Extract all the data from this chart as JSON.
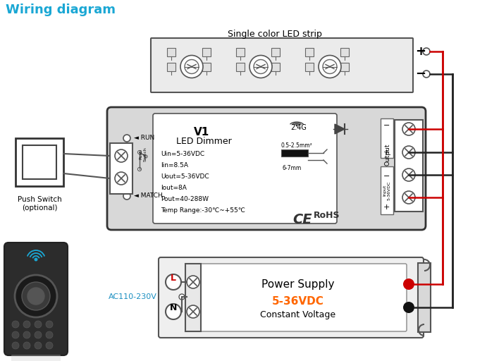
{
  "title": "Wiring diagram",
  "title_color": "#1aa7d4",
  "background_color": "#FFFFFF",
  "led_strip_label": "Single color LED strip",
  "power_supply_label1": "Power Supply",
  "power_supply_label2": "5-36VDC",
  "power_supply_label3": "Constant Voltage",
  "dimmer_title": "V1",
  "dimmer_subtitle": "LED Dimmer",
  "dimmer_specs": [
    "Uin=5-36VDC",
    "Iin=8.5A",
    "Uout=5-36VDC",
    "Iout=8A",
    "Pout=40-288W",
    "Temp Range:-30℃~+55℃"
  ],
  "dimmer_label1": "2.4G",
  "dimmer_label2": "0.5-2.5mm²",
  "dimmer_label3": "6-7mm",
  "push_switch_label": "Push Switch\n(optional)",
  "ac_label": "AC110-230V",
  "run_label": "RUN",
  "match_label": "MATCH",
  "output_label": "Output",
  "input_label": "Input\n5-36VDC",
  "push_switch_label2": "Push\nSwitch",
  "rohs_text": "RoHS",
  "wire_red": "#CC0000",
  "wire_dark": "#222222"
}
